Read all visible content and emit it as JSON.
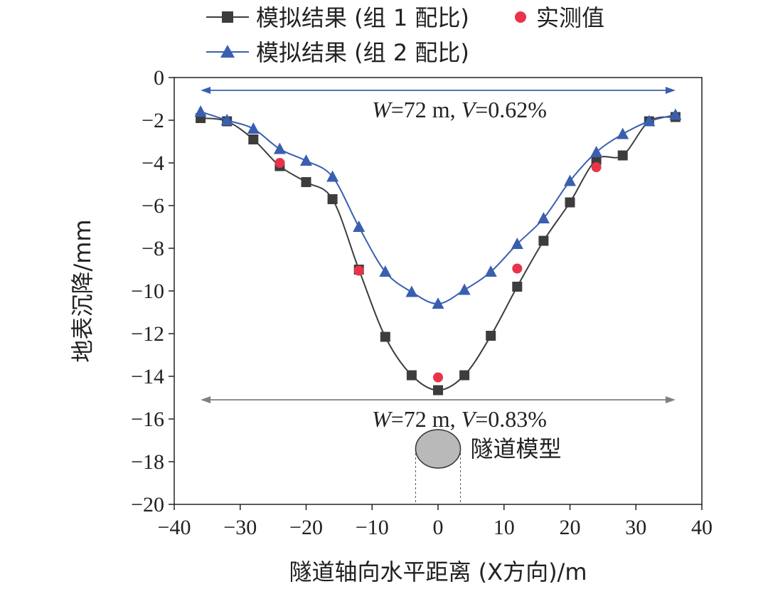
{
  "chart_data": {
    "type": "line",
    "xlabel": "隧道轴向水平距离 (X方向)/m",
    "ylabel": "地表沉降/mm",
    "xlim": [
      -40,
      40
    ],
    "ylim": [
      -20,
      0
    ],
    "x_ticks": [
      -40,
      -30,
      -20,
      -10,
      0,
      10,
      20,
      30,
      40
    ],
    "y_ticks": [
      0,
      -2,
      -4,
      -6,
      -8,
      -10,
      -12,
      -14,
      -16,
      -18,
      -20
    ],
    "grid": false,
    "legend_position": "top",
    "series": [
      {
        "name": "模拟结果 (组 1 配比)",
        "marker": "square",
        "color": "#3d3d3d",
        "x": [
          -36,
          -32,
          -28,
          -24,
          -20,
          -16,
          -12,
          -8,
          -4,
          0,
          4,
          8,
          12,
          16,
          20,
          24,
          28,
          32,
          36
        ],
        "y": [
          -1.9,
          -2.05,
          -2.9,
          -4.15,
          -4.9,
          -5.7,
          -9.0,
          -12.15,
          -13.95,
          -14.65,
          -13.95,
          -12.1,
          -9.8,
          -7.65,
          -5.85,
          -3.85,
          -3.65,
          -2.05,
          -1.85
        ]
      },
      {
        "name": "模拟结果 (组 2 配比)",
        "marker": "triangle",
        "color": "#3a5fb0",
        "x": [
          -36,
          -32,
          -28,
          -24,
          -20,
          -16,
          -12,
          -8,
          -4,
          0,
          4,
          8,
          12,
          16,
          20,
          24,
          28,
          32,
          36
        ],
        "y": [
          -1.6,
          -2.0,
          -2.4,
          -3.35,
          -3.9,
          -4.65,
          -7.0,
          -9.1,
          -10.05,
          -10.6,
          -9.95,
          -9.1,
          -7.8,
          -6.6,
          -4.85,
          -3.5,
          -2.65,
          -2.05,
          -1.75
        ]
      },
      {
        "name": "实测值",
        "marker": "circle",
        "color": "#e8334a",
        "x": [
          -24,
          -12,
          0,
          12,
          24
        ],
        "y": [
          -4.0,
          -9.05,
          -14.05,
          -8.95,
          -4.2
        ]
      }
    ],
    "annotations": [
      {
        "y": -0.6,
        "x_range": [
          -36,
          36
        ],
        "color": "#3a5fb0",
        "text_italic_1": "W",
        "text_rest_1": "=72 m,  ",
        "text_italic_2": "V",
        "text_rest_2": "=0.62%",
        "text_y": -1.5
      },
      {
        "y": -15.1,
        "x_range": [
          -36,
          36
        ],
        "color": "#808080",
        "text_italic_1": "W",
        "text_rest_1": "=72 m,  ",
        "text_italic_2": "V",
        "text_rest_2": "=0.83%",
        "text_y": -16.0
      }
    ],
    "tunnel": {
      "label": "隧道模型",
      "center_x": 0,
      "center_y": -17.4,
      "diameter": 6.8
    }
  }
}
